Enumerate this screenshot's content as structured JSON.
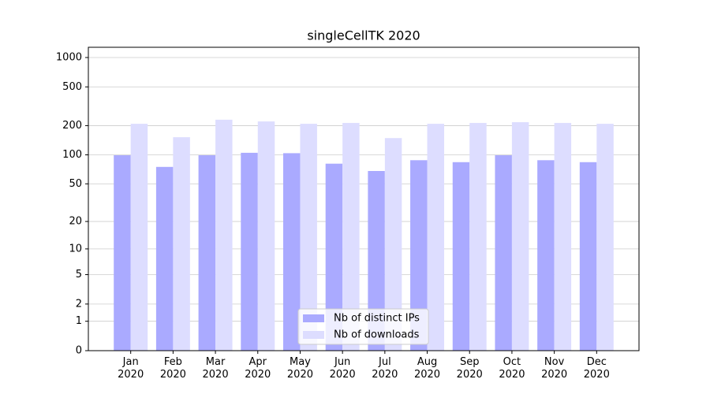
{
  "chart_data": {
    "type": "bar",
    "title": "singleCellTK 2020",
    "categories": [
      "Jan\n2020",
      "Feb\n2020",
      "Mar\n2020",
      "Apr\n2020",
      "May\n2020",
      "Jun\n2020",
      "Jul\n2020",
      "Aug\n2020",
      "Sep\n2020",
      "Oct\n2020",
      "Nov\n2020",
      "Dec\n2020"
    ],
    "series": [
      {
        "name": "Nb of distinct IPs",
        "color": "#aaaaff",
        "values": [
          99,
          75,
          99,
          105,
          104,
          81,
          68,
          88,
          84,
          99,
          88,
          84
        ]
      },
      {
        "name": "Nb of downloads",
        "color": "#ddddff",
        "values": [
          209,
          152,
          230,
          221,
          209,
          213,
          149,
          209,
          213,
          217,
          213,
          209
        ]
      }
    ],
    "y_scale": "log1p",
    "ylim": [
      0,
      1273
    ],
    "yticks": [
      0,
      1,
      2,
      5,
      10,
      20,
      50,
      100,
      200,
      500,
      1000
    ],
    "grid": true,
    "legend": "lower center"
  }
}
